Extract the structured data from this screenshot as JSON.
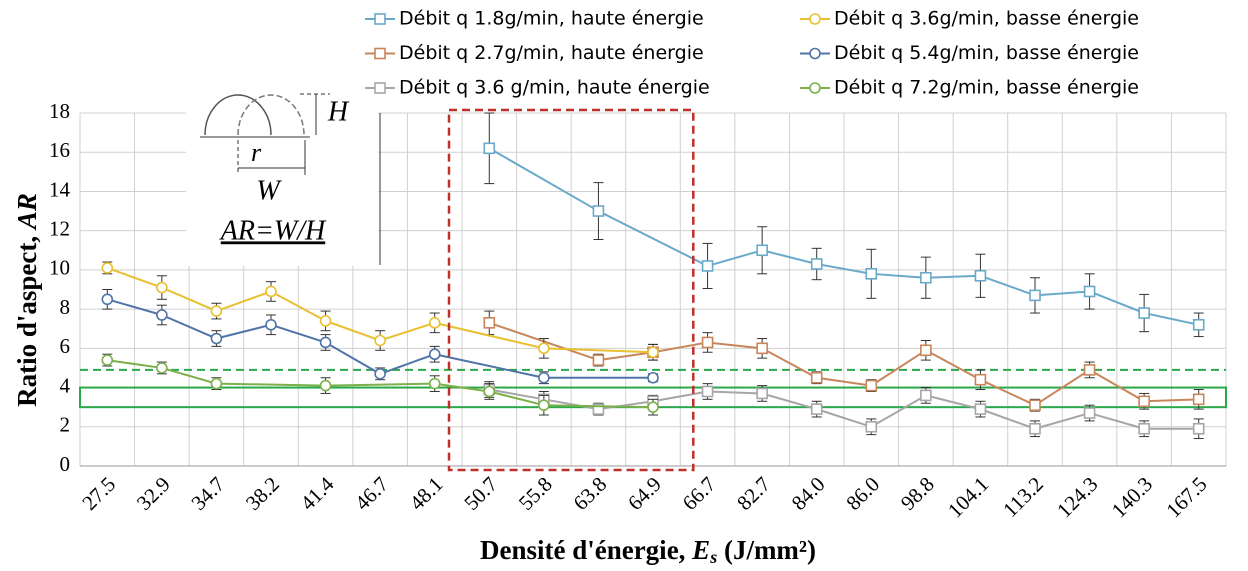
{
  "chart_data": {
    "type": "line",
    "x_label": [
      "Densité d'énergie, ",
      "E",
      "s",
      " (J/mm²)"
    ],
    "y_label": [
      "Ratio d'aspect, ",
      "AR"
    ],
    "categories": [
      "27.5",
      "32.9",
      "34.7",
      "38.2",
      "41.4",
      "46.7",
      "48.1",
      "50.7",
      "55.8",
      "63.8",
      "64.9",
      "66.7",
      "82.7",
      "84.0",
      "86.0",
      "98.8",
      "104.1",
      "113.2",
      "124.3",
      "140.3",
      "167.5"
    ],
    "ylim": [
      0,
      18
    ],
    "yticks": [
      0,
      2,
      4,
      6,
      8,
      10,
      12,
      14,
      16,
      18
    ],
    "grid": true,
    "reference_line": 4.9,
    "reference_band": [
      3,
      4
    ],
    "inset": {
      "labels": [
        "H",
        "r",
        "W"
      ],
      "formula": "AR=W/H"
    },
    "series": [
      {
        "name": "Débit q 1.8g/min, haute énergie",
        "color": "#6aa9c9",
        "marker": "square",
        "values": [
          null,
          null,
          null,
          null,
          null,
          null,
          null,
          16.2,
          null,
          13.0,
          null,
          10.2,
          11.0,
          10.3,
          9.8,
          9.6,
          9.7,
          8.7,
          8.9,
          7.8,
          7.2
        ],
        "errors": [
          null,
          null,
          null,
          null,
          null,
          null,
          null,
          1.8,
          null,
          1.45,
          null,
          1.15,
          1.2,
          0.8,
          1.25,
          1.05,
          1.1,
          0.9,
          0.9,
          0.95,
          0.6
        ]
      },
      {
        "name": "Débit q 2.7g/min, haute énergie",
        "color": "#c8855a",
        "marker": "square",
        "values": [
          null,
          null,
          null,
          null,
          null,
          null,
          null,
          7.3,
          null,
          5.4,
          5.8,
          6.3,
          6.0,
          4.5,
          4.1,
          5.9,
          4.4,
          3.1,
          4.9,
          3.3,
          3.4
        ],
        "errors": [
          null,
          null,
          null,
          null,
          null,
          null,
          null,
          0.6,
          null,
          0.3,
          0.4,
          0.5,
          0.5,
          0.3,
          0.3,
          0.5,
          0.5,
          0.3,
          0.4,
          0.4,
          0.5
        ]
      },
      {
        "name": "Débit q 3.6 g/min, haute énergie",
        "color": "#a6a6a6",
        "marker": "square",
        "values": [
          null,
          null,
          null,
          null,
          null,
          null,
          null,
          3.9,
          3.4,
          2.9,
          3.3,
          3.8,
          3.7,
          2.9,
          2.0,
          3.6,
          2.9,
          1.9,
          2.7,
          1.9,
          1.9
        ],
        "errors": [
          null,
          null,
          null,
          null,
          null,
          null,
          null,
          0.4,
          0.4,
          0.3,
          0.3,
          0.4,
          0.4,
          0.4,
          0.4,
          0.4,
          0.4,
          0.4,
          0.4,
          0.4,
          0.5
        ]
      },
      {
        "name": "Débit q 3.6g/min, basse énergie",
        "color": "#e8c030",
        "marker": "circle",
        "values": [
          10.1,
          9.1,
          7.9,
          8.9,
          7.4,
          6.4,
          7.3,
          null,
          6.0,
          null,
          5.8,
          null,
          null,
          null,
          null,
          null,
          null,
          null,
          null,
          null,
          null
        ],
        "errors": [
          0.3,
          0.6,
          0.4,
          0.5,
          0.5,
          0.5,
          0.5,
          null,
          0.5,
          null,
          0.4,
          null,
          null,
          null,
          null,
          null,
          null,
          null,
          null,
          null,
          null
        ]
      },
      {
        "name": "Débit q 5.4g/min, basse énergie",
        "color": "#4f74a8",
        "marker": "circle",
        "values": [
          8.5,
          7.7,
          6.5,
          7.2,
          6.3,
          4.7,
          5.7,
          null,
          4.5,
          null,
          4.5,
          null,
          null,
          null,
          null,
          null,
          null,
          null,
          null,
          null,
          null
        ],
        "errors": [
          0.5,
          0.5,
          0.4,
          0.5,
          0.4,
          0.3,
          0.4,
          null,
          0.3,
          null,
          0.2,
          null,
          null,
          null,
          null,
          null,
          null,
          null,
          null,
          null,
          null
        ]
      },
      {
        "name": "Débit q 7.2g/min, basse énergie",
        "color": "#7bb04a",
        "marker": "circle",
        "values": [
          5.4,
          5.0,
          4.2,
          null,
          4.1,
          null,
          4.2,
          3.8,
          3.1,
          null,
          3.0,
          null,
          null,
          null,
          null,
          null,
          null,
          null,
          null,
          null,
          null
        ],
        "errors": [
          0.3,
          0.3,
          0.3,
          null,
          0.4,
          null,
          0.4,
          0.4,
          0.5,
          null,
          0.4,
          null,
          null,
          null,
          null,
          null,
          null,
          null,
          null,
          null,
          null
        ]
      }
    ]
  }
}
